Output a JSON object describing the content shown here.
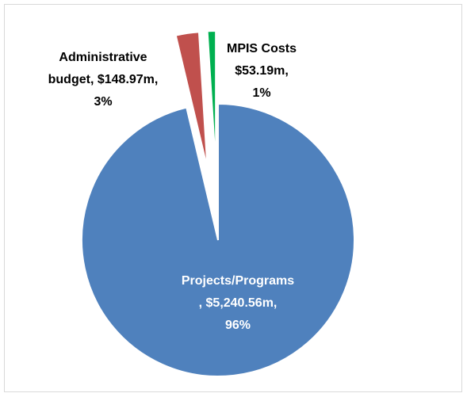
{
  "chart_data": {
    "type": "pie",
    "categories": [
      "Projects/Programs",
      "Administrative budget",
      "MPIS Costs"
    ],
    "values": [
      5240.56,
      148.97,
      53.19
    ],
    "value_labels": [
      "$5,240.56m",
      "$148.97m",
      "$53.19m"
    ],
    "shares": [
      96,
      3,
      1
    ],
    "share_labels": [
      "96%",
      "3%",
      "1%"
    ],
    "colors": [
      "#4f81bd",
      "#c0504d",
      "#00b050"
    ]
  }
}
